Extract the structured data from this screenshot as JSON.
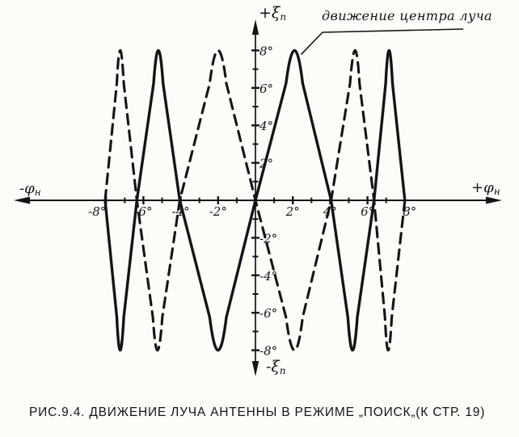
{
  "labels": {
    "y_axis_top": {
      "base": "+ξ",
      "sub": "п"
    },
    "y_axis_bottom": {
      "base": "-ξ",
      "sub": "п"
    },
    "x_axis_left": {
      "base": "-φ",
      "sub": "н"
    },
    "x_axis_right": {
      "base": "+φ",
      "sub": "н"
    }
  },
  "annotation": {
    "text": "движение центра луча"
  },
  "caption": "РИС.9.4. ДВИЖЕНИЕ ЛУЧА АНТЕННЫ В РЕЖИМЕ „ПОИСК„(К СТР. 19)",
  "ink_color": "#141414",
  "paper_color": "#fcfcf9",
  "chart_data": {
    "type": "line",
    "title": "РИС.9.4. ДВИЖЕНИЕ ЛУЧА АНТЕННЫ В РЕЖИМЕ „ПОИСК„(К СТР. 19)",
    "xlabel": "φн",
    "ylabel": "ξп",
    "xlim": [
      -13,
      13
    ],
    "ylim": [
      -9.4,
      9.4
    ],
    "grid": false,
    "legend": "none",
    "units": "degrees",
    "amplitude_deg": 8,
    "minor_tick_step": 1,
    "x_ticks": [
      {
        "value": -8,
        "label": "-8°"
      },
      {
        "value": -6,
        "label": "-6°"
      },
      {
        "value": -4,
        "label": "-4°"
      },
      {
        "value": -2,
        "label": "-2°"
      },
      {
        "value": 2,
        "label": "2°"
      },
      {
        "value": 4,
        "label": "4°"
      },
      {
        "value": 6,
        "label": "6°"
      },
      {
        "value": 8,
        "label": "8°"
      }
    ],
    "y_ticks": [
      {
        "value": 8,
        "label": "8°"
      },
      {
        "value": 6,
        "label": "6°"
      },
      {
        "value": 4,
        "label": "4°"
      },
      {
        "value": 2,
        "label": "2°"
      },
      {
        "value": -2,
        "label": "-2°"
      },
      {
        "value": -4,
        "label": "-4°"
      },
      {
        "value": -6,
        "label": "-6°"
      },
      {
        "value": -8,
        "label": "-8°"
      }
    ],
    "series": [
      {
        "name": "beam-center-path",
        "style": "solid",
        "points": [
          [
            -8.05,
            0
          ],
          [
            -7.25,
            -8
          ],
          [
            -6.35,
            0
          ],
          [
            -5.2,
            8
          ],
          [
            -4.05,
            0
          ],
          [
            -2.0,
            -8
          ],
          [
            0,
            0
          ],
          [
            2.1,
            8
          ],
          [
            4.05,
            0
          ],
          [
            5.2,
            -8
          ],
          [
            6.35,
            0
          ],
          [
            7.15,
            8
          ],
          [
            8.0,
            0
          ]
        ]
      },
      {
        "name": "beam-center-path-return",
        "style": "dashed",
        "points": [
          [
            -8.05,
            0
          ],
          [
            -7.25,
            8
          ],
          [
            -6.35,
            0
          ],
          [
            -5.25,
            -8
          ],
          [
            -4.05,
            0
          ],
          [
            -2.0,
            8
          ],
          [
            0,
            0
          ],
          [
            2.1,
            -8
          ],
          [
            4.05,
            0
          ],
          [
            5.35,
            8
          ],
          [
            6.35,
            0
          ],
          [
            7.1,
            -8
          ],
          [
            8.0,
            0
          ]
        ]
      }
    ],
    "annotation_target": [
      2.1,
      8
    ]
  }
}
